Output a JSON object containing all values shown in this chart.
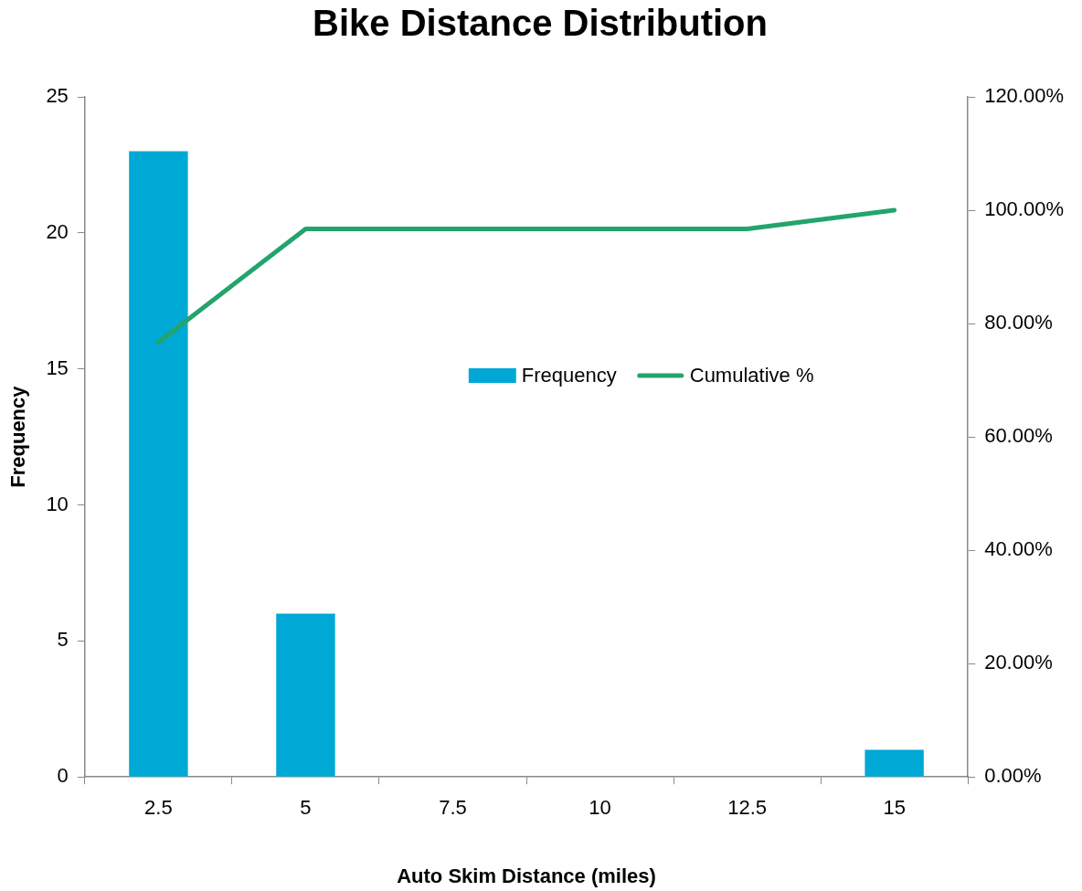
{
  "chart_data": {
    "type": "bar",
    "title": "Bike Distance Distribution",
    "xlabel": "Auto Skim Distance (miles)",
    "ylabel": "Frequency",
    "categories": [
      "2.5",
      "5",
      "7.5",
      "10",
      "12.5",
      "15"
    ],
    "series": [
      {
        "name": "Frequency",
        "color": "#00a8d6",
        "values": [
          23,
          6,
          0,
          0,
          0,
          1
        ]
      },
      {
        "name": "Cumulative %",
        "type": "line",
        "axis": "y2",
        "color": "#23a46c",
        "values": [
          76.7,
          96.7,
          96.7,
          96.7,
          96.7,
          100
        ]
      }
    ],
    "ylim": [
      0,
      25
    ],
    "yticks": [
      0,
      5,
      10,
      15,
      20,
      25
    ],
    "y2lim": [
      0,
      120
    ],
    "y2ticks": [
      {
        "value": 0,
        "label": "0.00%"
      },
      {
        "value": 20,
        "label": "20.00%"
      },
      {
        "value": 40,
        "label": "40.00%"
      },
      {
        "value": 60,
        "label": "60.00%"
      },
      {
        "value": 80,
        "label": "80.00%"
      },
      {
        "value": 100,
        "label": "100.00%"
      },
      {
        "value": 120,
        "label": "120.00%"
      }
    ],
    "grid": false,
    "legend": "center",
    "marker": "none",
    "line_style": "solid"
  }
}
